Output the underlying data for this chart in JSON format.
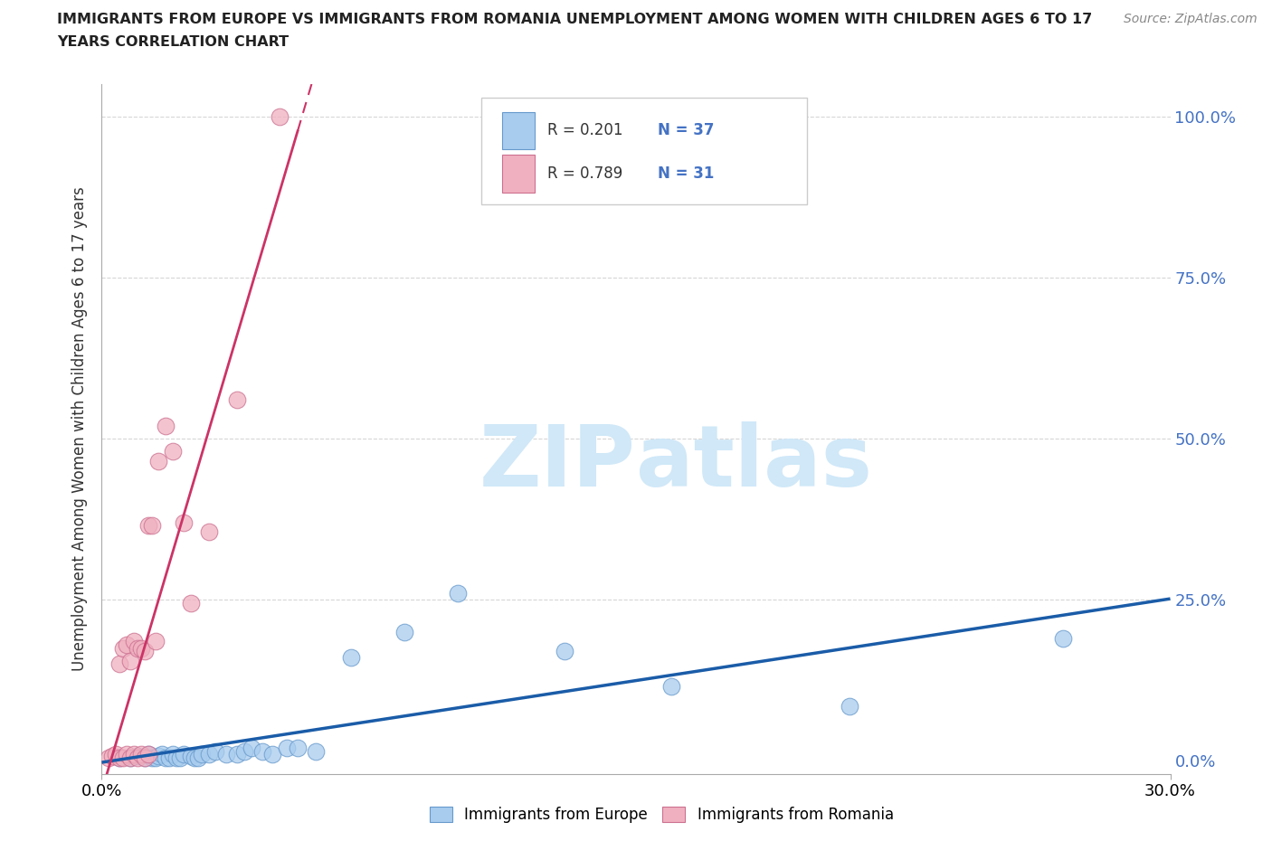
{
  "title_line1": "IMMIGRANTS FROM EUROPE VS IMMIGRANTS FROM ROMANIA UNEMPLOYMENT AMONG WOMEN WITH CHILDREN AGES 6 TO 17",
  "title_line2": "YEARS CORRELATION CHART",
  "source": "Source: ZipAtlas.com",
  "ylabel": "Unemployment Among Women with Children Ages 6 to 17 years",
  "xlabel_bottom_left": "0.0%",
  "xlabel_bottom_right": "30.0%",
  "ytick_labels": [
    "0.0%",
    "25.0%",
    "50.0%",
    "75.0%",
    "100.0%"
  ],
  "ytick_values": [
    0.0,
    0.25,
    0.5,
    0.75,
    1.0
  ],
  "xlim": [
    0.0,
    0.3
  ],
  "ylim": [
    -0.02,
    1.05
  ],
  "europe_color": "#a8ccee",
  "europe_edge_color": "#6699cc",
  "romania_color": "#f0b0c0",
  "romania_edge_color": "#cc7090",
  "trend_europe_color": "#1a5ca8",
  "trend_romania_color": "#cc3366",
  "watermark_color": "#d0e8f8",
  "legend_europe_R": "0.201",
  "legend_europe_N": "37",
  "legend_romania_R": "0.789",
  "legend_romania_N": "31",
  "europe_x": [
    0.005,
    0.008,
    0.01,
    0.012,
    0.013,
    0.014,
    0.015,
    0.016,
    0.017,
    0.018,
    0.019,
    0.02,
    0.021,
    0.022,
    0.023,
    0.025,
    0.026,
    0.027,
    0.028,
    0.03,
    0.032,
    0.035,
    0.038,
    0.04,
    0.042,
    0.045,
    0.048,
    0.052,
    0.055,
    0.06,
    0.07,
    0.085,
    0.1,
    0.13,
    0.16,
    0.21,
    0.27
  ],
  "europe_y": [
    0.005,
    0.005,
    0.008,
    0.005,
    0.01,
    0.005,
    0.005,
    0.008,
    0.01,
    0.005,
    0.005,
    0.01,
    0.005,
    0.005,
    0.01,
    0.008,
    0.005,
    0.005,
    0.01,
    0.01,
    0.015,
    0.01,
    0.01,
    0.015,
    0.02,
    0.015,
    0.01,
    0.02,
    0.02,
    0.015,
    0.16,
    0.2,
    0.26,
    0.17,
    0.115,
    0.085,
    0.19
  ],
  "romania_x": [
    0.002,
    0.003,
    0.004,
    0.005,
    0.005,
    0.006,
    0.006,
    0.007,
    0.007,
    0.008,
    0.008,
    0.009,
    0.009,
    0.01,
    0.01,
    0.011,
    0.011,
    0.012,
    0.012,
    0.013,
    0.013,
    0.014,
    0.015,
    0.016,
    0.018,
    0.02,
    0.023,
    0.025,
    0.03,
    0.038,
    0.05
  ],
  "romania_y": [
    0.005,
    0.008,
    0.01,
    0.005,
    0.15,
    0.005,
    0.175,
    0.01,
    0.18,
    0.005,
    0.155,
    0.01,
    0.185,
    0.005,
    0.175,
    0.175,
    0.01,
    0.005,
    0.17,
    0.01,
    0.365,
    0.365,
    0.185,
    0.465,
    0.52,
    0.48,
    0.37,
    0.245,
    0.355,
    0.56,
    1.0
  ],
  "background_color": "#ffffff",
  "grid_color": "#cccccc"
}
